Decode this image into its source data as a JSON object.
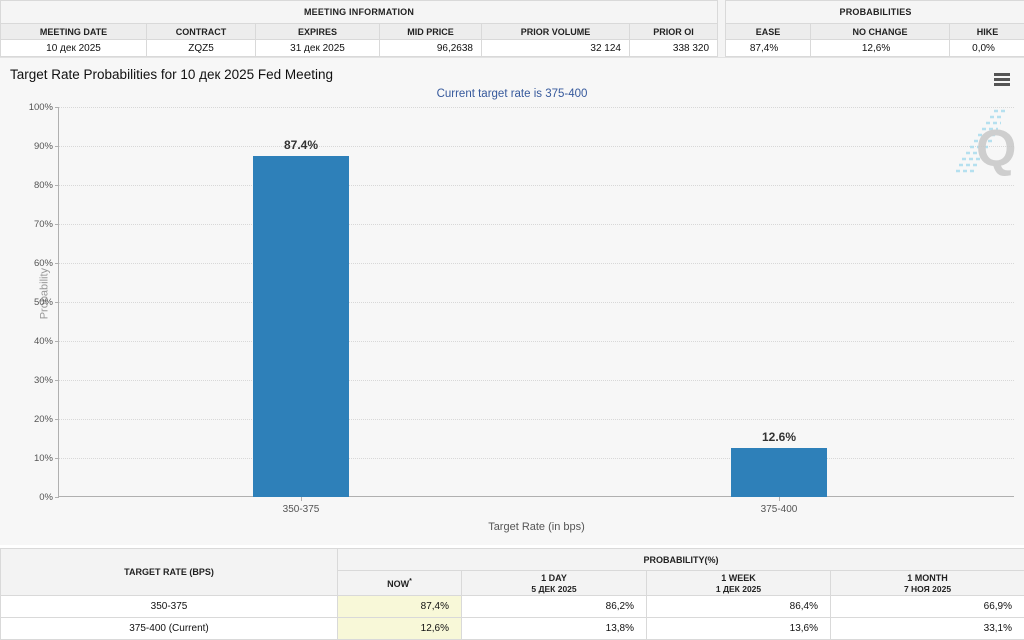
{
  "top": {
    "meeting": {
      "title": "MEETING INFORMATION",
      "headers": [
        "MEETING DATE",
        "CONTRACT",
        "EXPIRES",
        "MID PRICE",
        "PRIOR VOLUME",
        "PRIOR OI"
      ],
      "values": [
        "10 дек 2025",
        "ZQZ5",
        "31 дек 2025",
        "96,2638",
        "32 124",
        "338 320"
      ]
    },
    "probabilities": {
      "title": "PROBABILITIES",
      "headers": [
        "EASE",
        "NO CHANGE",
        "HIKE"
      ],
      "values": [
        "87,4%",
        "12,6%",
        "0,0%"
      ]
    }
  },
  "chart": {
    "title": "Target Rate Probabilities for 10 дек 2025 Fed Meeting",
    "subtitle": "Current target rate is 375-400",
    "menu_icon": "hamburger-menu",
    "watermark_letter": "Q"
  },
  "chart_data": {
    "type": "bar",
    "title": "Target Rate Probabilities for 10 дек 2025 Fed Meeting",
    "subtitle": "Current target rate is 375-400",
    "categories": [
      "350-375",
      "375-400"
    ],
    "values": [
      87.4,
      12.6
    ],
    "value_labels": [
      "87.4%",
      "12.6%"
    ],
    "xlabel": "Target Rate (in bps)",
    "ylabel": "Probability",
    "ylim": [
      0,
      100
    ],
    "ytick_step": 10,
    "ytick_suffix": "%",
    "grid": "horizontal dotted",
    "legend": "none",
    "bar_color": "#2e80b9"
  },
  "bottom_table": {
    "rate_header": "TARGET RATE (BPS)",
    "group_header": "PROBABILITY(%)",
    "columns": [
      {
        "line1": "NOW",
        "sup": "*",
        "line2": ""
      },
      {
        "line1": "1 DAY",
        "line2": "5 ДЕК 2025"
      },
      {
        "line1": "1 WEEK",
        "line2": "1 ДЕК 2025"
      },
      {
        "line1": "1 MONTH",
        "line2": "7 НОЯ 2025"
      }
    ],
    "rows": [
      {
        "rate": "350-375",
        "now": "87,4%",
        "day": "86,2%",
        "week": "86,4%",
        "month": "66,9%"
      },
      {
        "rate": "375-400 (Current)",
        "now": "12,6%",
        "day": "13,8%",
        "week": "13,6%",
        "month": "33,1%"
      }
    ]
  },
  "colors": {
    "bar": "#2e80b9",
    "subtitle_blue": "#36599c",
    "now_highlight": "#f8f8d8",
    "chart_background": "#f7f7f7",
    "header_background": "#ededed"
  }
}
